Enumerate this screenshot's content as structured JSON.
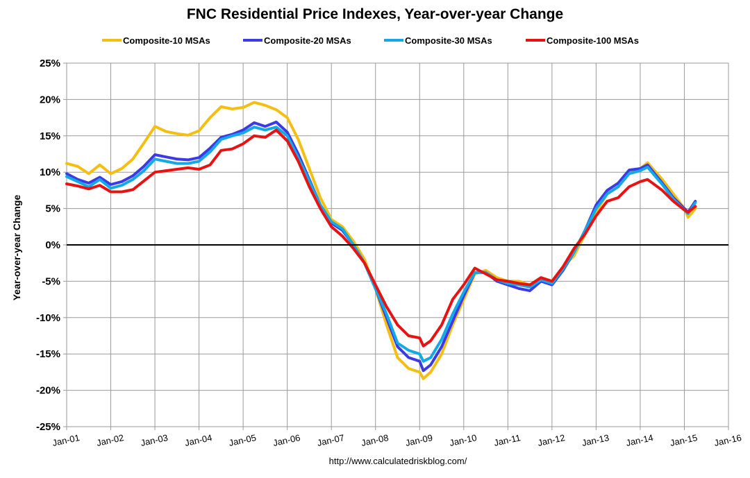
{
  "chart_data": {
    "type": "line",
    "title": "FNC Residential Price Indexes, Year-over-year Change",
    "ylabel": "Year-over-year Change",
    "xlabel": "",
    "source": "http://www.calculatedriskblog.com/",
    "ylim": [
      -25,
      25
    ],
    "xlim": [
      "2001-01",
      "2016-01"
    ],
    "y_ticks": [
      25,
      20,
      15,
      10,
      5,
      0,
      -5,
      -10,
      -15,
      -20,
      -25
    ],
    "y_tick_labels": [
      "25%",
      "20%",
      "15%",
      "10%",
      "5%",
      "0%",
      "-5%",
      "-10%",
      "-15%",
      "-20%",
      "-25%"
    ],
    "x_ticks": [
      "2001-01",
      "2002-01",
      "2003-01",
      "2004-01",
      "2005-01",
      "2006-01",
      "2007-01",
      "2008-01",
      "2009-01",
      "2010-01",
      "2011-01",
      "2012-01",
      "2013-01",
      "2014-01",
      "2015-01",
      "2016-01"
    ],
    "x_tick_labels": [
      "Jan-01",
      "Jan-02",
      "Jan-03",
      "Jan-04",
      "Jan-05",
      "Jan-06",
      "Jan-07",
      "Jan-08",
      "Jan-09",
      "Jan-10",
      "Jan-11",
      "Jan-12",
      "Jan-13",
      "Jan-14",
      "Jan-15",
      "Jan-16"
    ],
    "grid": true,
    "legend_position": "top",
    "series": [
      {
        "name": "Composite-10 MSAs",
        "color": "#f5be12",
        "points": [
          [
            "2001-01",
            11.2
          ],
          [
            "2001-04",
            10.8
          ],
          [
            "2001-07",
            9.8
          ],
          [
            "2001-10",
            11.0
          ],
          [
            "2002-01",
            9.8
          ],
          [
            "2002-04",
            10.5
          ],
          [
            "2002-07",
            11.8
          ],
          [
            "2002-10",
            14.0
          ],
          [
            "2003-01",
            16.3
          ],
          [
            "2003-04",
            15.6
          ],
          [
            "2003-07",
            15.3
          ],
          [
            "2003-10",
            15.1
          ],
          [
            "2004-01",
            15.7
          ],
          [
            "2004-04",
            17.5
          ],
          [
            "2004-07",
            19.0
          ],
          [
            "2004-10",
            18.7
          ],
          [
            "2005-01",
            18.9
          ],
          [
            "2005-04",
            19.6
          ],
          [
            "2005-07",
            19.2
          ],
          [
            "2005-10",
            18.6
          ],
          [
            "2006-01",
            17.5
          ],
          [
            "2006-04",
            14.5
          ],
          [
            "2006-07",
            10.5
          ],
          [
            "2006-10",
            6.5
          ],
          [
            "2007-01",
            3.5
          ],
          [
            "2007-04",
            2.5
          ],
          [
            "2007-07",
            0.5
          ],
          [
            "2007-10",
            -2.0
          ],
          [
            "2008-01",
            -6.0
          ],
          [
            "2008-04",
            -11.0
          ],
          [
            "2008-07",
            -15.5
          ],
          [
            "2008-10",
            -17.0
          ],
          [
            "2009-01",
            -17.5
          ],
          [
            "2009-02",
            -18.4
          ],
          [
            "2009-04",
            -17.5
          ],
          [
            "2009-07",
            -15.0
          ],
          [
            "2009-10",
            -11.0
          ],
          [
            "2010-01",
            -7.5
          ],
          [
            "2010-04",
            -4.0
          ],
          [
            "2010-07",
            -3.5
          ],
          [
            "2010-10",
            -4.5
          ],
          [
            "2011-01",
            -5.0
          ],
          [
            "2011-04",
            -5.0
          ],
          [
            "2011-07",
            -5.5
          ],
          [
            "2011-10",
            -4.5
          ],
          [
            "2012-01",
            -5.0
          ],
          [
            "2012-04",
            -3.0
          ],
          [
            "2012-07",
            -1.5
          ],
          [
            "2012-10",
            1.5
          ],
          [
            "2013-01",
            4.5
          ],
          [
            "2013-04",
            7.0
          ],
          [
            "2013-07",
            8.0
          ],
          [
            "2013-10",
            10.0
          ],
          [
            "2014-01",
            10.5
          ],
          [
            "2014-03",
            11.3
          ],
          [
            "2014-07",
            9.0
          ],
          [
            "2014-10",
            7.0
          ],
          [
            "2015-01",
            5.0
          ],
          [
            "2015-02",
            3.8
          ],
          [
            "2015-04",
            5.0
          ]
        ]
      },
      {
        "name": "Composite-20 MSAs",
        "color": "#3a3ae6",
        "points": [
          [
            "2001-01",
            9.8
          ],
          [
            "2001-04",
            9.0
          ],
          [
            "2001-07",
            8.5
          ],
          [
            "2001-10",
            9.3
          ],
          [
            "2002-01",
            8.3
          ],
          [
            "2002-04",
            8.7
          ],
          [
            "2002-07",
            9.5
          ],
          [
            "2002-10",
            10.8
          ],
          [
            "2003-01",
            12.4
          ],
          [
            "2003-04",
            12.1
          ],
          [
            "2003-07",
            11.8
          ],
          [
            "2003-10",
            11.7
          ],
          [
            "2004-01",
            12.0
          ],
          [
            "2004-04",
            13.3
          ],
          [
            "2004-07",
            14.8
          ],
          [
            "2004-10",
            15.2
          ],
          [
            "2005-01",
            15.8
          ],
          [
            "2005-04",
            16.8
          ],
          [
            "2005-07",
            16.3
          ],
          [
            "2005-10",
            16.9
          ],
          [
            "2006-01",
            15.5
          ],
          [
            "2006-04",
            12.5
          ],
          [
            "2006-07",
            9.0
          ],
          [
            "2006-10",
            5.5
          ],
          [
            "2007-01",
            3.0
          ],
          [
            "2007-04",
            2.0
          ],
          [
            "2007-07",
            0.0
          ],
          [
            "2007-10",
            -2.5
          ],
          [
            "2008-01",
            -6.0
          ],
          [
            "2008-04",
            -10.0
          ],
          [
            "2008-07",
            -14.0
          ],
          [
            "2008-10",
            -15.5
          ],
          [
            "2009-01",
            -16.0
          ],
          [
            "2009-02",
            -17.3
          ],
          [
            "2009-04",
            -16.5
          ],
          [
            "2009-07",
            -14.0
          ],
          [
            "2009-10",
            -10.5
          ],
          [
            "2010-01",
            -7.0
          ],
          [
            "2010-04",
            -3.8
          ],
          [
            "2010-07",
            -3.8
          ],
          [
            "2010-10",
            -5.0
          ],
          [
            "2011-01",
            -5.5
          ],
          [
            "2011-04",
            -6.0
          ],
          [
            "2011-07",
            -6.3
          ],
          [
            "2011-10",
            -5.0
          ],
          [
            "2012-01",
            -5.5
          ],
          [
            "2012-04",
            -3.5
          ],
          [
            "2012-07",
            -1.0
          ],
          [
            "2012-10",
            2.0
          ],
          [
            "2013-01",
            5.5
          ],
          [
            "2013-04",
            7.5
          ],
          [
            "2013-07",
            8.5
          ],
          [
            "2013-10",
            10.3
          ],
          [
            "2014-01",
            10.5
          ],
          [
            "2014-03",
            11.0
          ],
          [
            "2014-07",
            8.5
          ],
          [
            "2014-10",
            6.5
          ],
          [
            "2015-01",
            5.0
          ],
          [
            "2015-02",
            4.5
          ],
          [
            "2015-04",
            6.0
          ]
        ]
      },
      {
        "name": "Composite-30 MSAs",
        "color": "#13a9e6",
        "points": [
          [
            "2001-01",
            9.4
          ],
          [
            "2001-04",
            8.7
          ],
          [
            "2001-07",
            8.0
          ],
          [
            "2001-10",
            9.0
          ],
          [
            "2002-01",
            7.8
          ],
          [
            "2002-04",
            8.2
          ],
          [
            "2002-07",
            9.0
          ],
          [
            "2002-10",
            10.2
          ],
          [
            "2003-01",
            11.8
          ],
          [
            "2003-04",
            11.5
          ],
          [
            "2003-07",
            11.2
          ],
          [
            "2003-10",
            11.2
          ],
          [
            "2004-01",
            11.5
          ],
          [
            "2004-04",
            12.8
          ],
          [
            "2004-07",
            14.5
          ],
          [
            "2004-10",
            15.0
          ],
          [
            "2005-01",
            15.4
          ],
          [
            "2005-04",
            16.2
          ],
          [
            "2005-07",
            15.8
          ],
          [
            "2005-10",
            16.2
          ],
          [
            "2006-01",
            15.0
          ],
          [
            "2006-04",
            12.0
          ],
          [
            "2006-07",
            8.8
          ],
          [
            "2006-10",
            5.5
          ],
          [
            "2007-01",
            3.2
          ],
          [
            "2007-04",
            2.2
          ],
          [
            "2007-07",
            0.0
          ],
          [
            "2007-10",
            -2.5
          ],
          [
            "2008-01",
            -6.0
          ],
          [
            "2008-04",
            -9.5
          ],
          [
            "2008-07",
            -13.5
          ],
          [
            "2008-10",
            -14.5
          ],
          [
            "2009-01",
            -15.0
          ],
          [
            "2009-02",
            -16.0
          ],
          [
            "2009-04",
            -15.5
          ],
          [
            "2009-07",
            -13.0
          ],
          [
            "2009-10",
            -9.5
          ],
          [
            "2010-01",
            -6.5
          ],
          [
            "2010-04",
            -3.8
          ],
          [
            "2010-07",
            -3.8
          ],
          [
            "2010-10",
            -4.8
          ],
          [
            "2011-01",
            -5.3
          ],
          [
            "2011-04",
            -5.5
          ],
          [
            "2011-07",
            -5.8
          ],
          [
            "2011-10",
            -4.8
          ],
          [
            "2012-01",
            -5.3
          ],
          [
            "2012-04",
            -3.3
          ],
          [
            "2012-07",
            -1.0
          ],
          [
            "2012-10",
            2.0
          ],
          [
            "2013-01",
            5.0
          ],
          [
            "2013-04",
            7.0
          ],
          [
            "2013-07",
            8.0
          ],
          [
            "2013-10",
            9.8
          ],
          [
            "2014-01",
            10.2
          ],
          [
            "2014-03",
            10.7
          ],
          [
            "2014-07",
            8.3
          ],
          [
            "2014-10",
            6.3
          ],
          [
            "2015-01",
            4.8
          ],
          [
            "2015-02",
            4.3
          ],
          [
            "2015-04",
            5.8
          ]
        ]
      },
      {
        "name": "Composite-100 MSAs",
        "color": "#e81212",
        "points": [
          [
            "2001-01",
            8.4
          ],
          [
            "2001-04",
            8.1
          ],
          [
            "2001-07",
            7.7
          ],
          [
            "2001-10",
            8.2
          ],
          [
            "2002-01",
            7.3
          ],
          [
            "2002-04",
            7.3
          ],
          [
            "2002-07",
            7.6
          ],
          [
            "2002-10",
            8.8
          ],
          [
            "2003-01",
            10.0
          ],
          [
            "2003-04",
            10.2
          ],
          [
            "2003-07",
            10.4
          ],
          [
            "2003-10",
            10.6
          ],
          [
            "2004-01",
            10.4
          ],
          [
            "2004-04",
            11.0
          ],
          [
            "2004-07",
            13.0
          ],
          [
            "2004-10",
            13.2
          ],
          [
            "2005-01",
            13.9
          ],
          [
            "2005-04",
            15.0
          ],
          [
            "2005-07",
            14.8
          ],
          [
            "2005-10",
            15.8
          ],
          [
            "2006-01",
            14.3
          ],
          [
            "2006-04",
            11.5
          ],
          [
            "2006-07",
            8.0
          ],
          [
            "2006-10",
            5.0
          ],
          [
            "2007-01",
            2.5
          ],
          [
            "2007-04",
            1.2
          ],
          [
            "2007-07",
            -0.5
          ],
          [
            "2007-10",
            -2.5
          ],
          [
            "2008-01",
            -5.5
          ],
          [
            "2008-04",
            -8.5
          ],
          [
            "2008-07",
            -11.0
          ],
          [
            "2008-10",
            -12.5
          ],
          [
            "2009-01",
            -12.8
          ],
          [
            "2009-02",
            -13.9
          ],
          [
            "2009-04",
            -13.2
          ],
          [
            "2009-07",
            -11.0
          ],
          [
            "2009-10",
            -7.5
          ],
          [
            "2010-01",
            -5.5
          ],
          [
            "2010-04",
            -3.2
          ],
          [
            "2010-07",
            -4.0
          ],
          [
            "2010-10",
            -4.8
          ],
          [
            "2011-01",
            -5.0
          ],
          [
            "2011-04",
            -5.3
          ],
          [
            "2011-07",
            -5.5
          ],
          [
            "2011-10",
            -4.5
          ],
          [
            "2012-01",
            -5.0
          ],
          [
            "2012-04",
            -3.0
          ],
          [
            "2012-07",
            -0.5
          ],
          [
            "2012-10",
            1.5
          ],
          [
            "2013-01",
            4.0
          ],
          [
            "2013-04",
            6.0
          ],
          [
            "2013-07",
            6.5
          ],
          [
            "2013-10",
            8.0
          ],
          [
            "2014-01",
            8.7
          ],
          [
            "2014-03",
            9.0
          ],
          [
            "2014-07",
            7.5
          ],
          [
            "2014-10",
            6.0
          ],
          [
            "2015-01",
            4.8
          ],
          [
            "2015-02",
            4.5
          ],
          [
            "2015-04",
            5.3
          ]
        ]
      }
    ]
  }
}
